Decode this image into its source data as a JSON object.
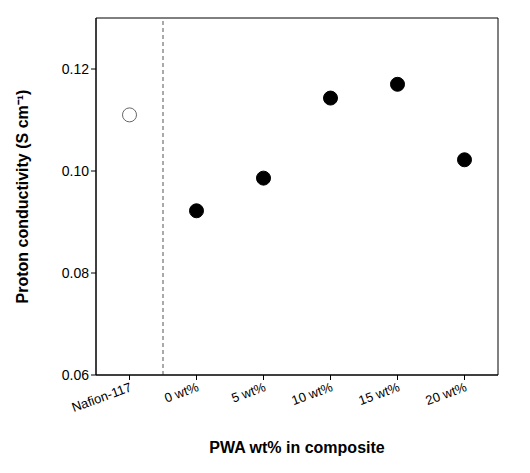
{
  "chart_data": {
    "type": "scatter",
    "x_label": "PWA wt% in composite",
    "y_label": "Proton conductivity (S cm⁻¹)",
    "categories": [
      "Nafion-117",
      "0 wt%",
      "5 wt%",
      "10 wt%",
      "15 wt%",
      "20 wt%"
    ],
    "values": [
      0.111,
      0.0922,
      0.0986,
      0.1143,
      0.117,
      0.1022
    ],
    "colors": [
      "#ffffff",
      "#000000",
      "#000000",
      "#000000",
      "#000000",
      "#000000"
    ],
    "marker": "circle",
    "ylim": [
      0.06,
      0.13
    ],
    "yticks": [
      0.06,
      0.08,
      {
        "value": 0.1,
        "label": "0.10"
      },
      0.12
    ],
    "grid": false
  }
}
